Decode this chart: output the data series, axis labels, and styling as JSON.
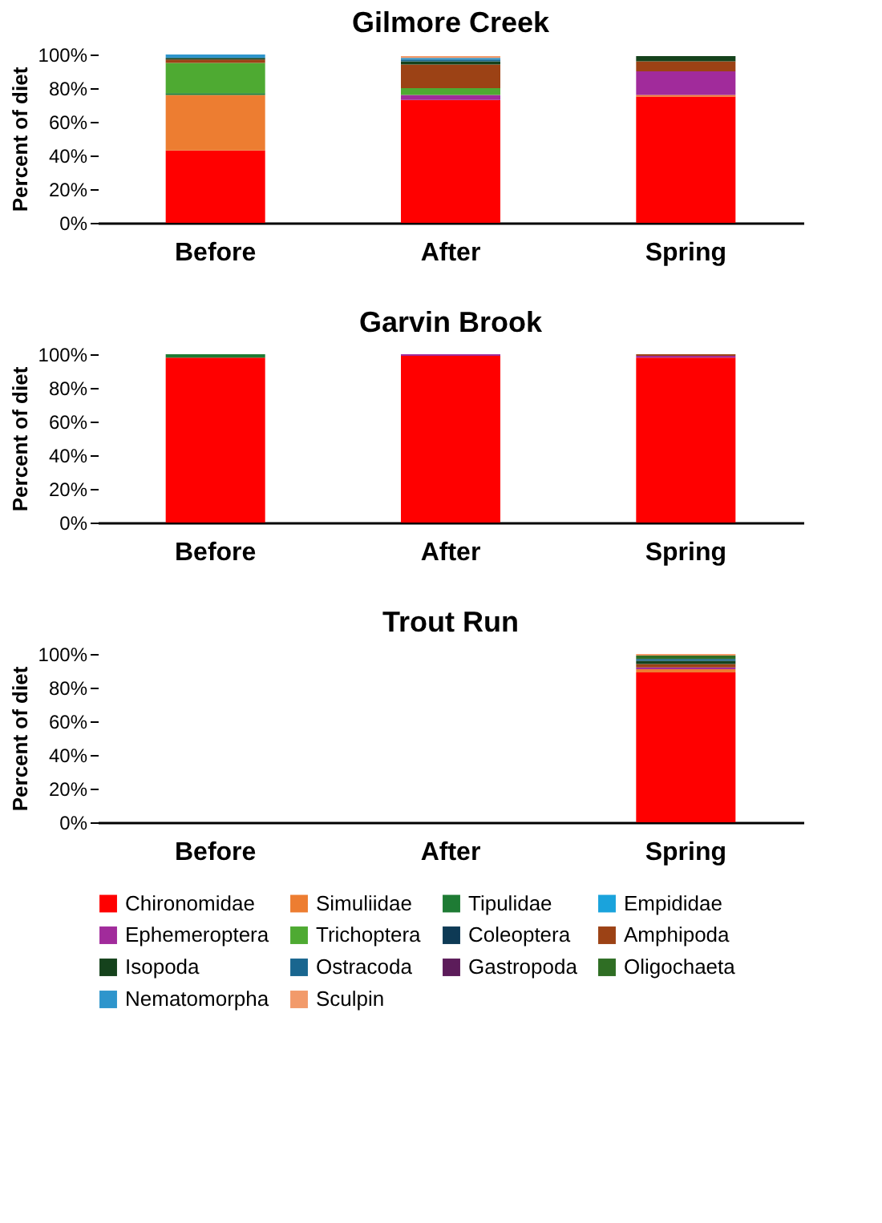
{
  "chart_data": [
    {
      "type": "bar",
      "title": "Gilmore Creek",
      "ylabel": "Percent of diet",
      "categories": [
        "Before",
        "After",
        "Spring"
      ],
      "stacked": true,
      "ylim": [
        0,
        100
      ],
      "yticks": [
        {
          "value": 0,
          "label": "0%"
        },
        {
          "value": 20,
          "label": "20%"
        },
        {
          "value": 40,
          "label": "40%"
        },
        {
          "value": 60,
          "label": "60%"
        },
        {
          "value": 80,
          "label": "80%"
        },
        {
          "value": 100,
          "label": "100%"
        }
      ],
      "grid": false,
      "series": [
        {
          "color": "#ff0000",
          "values": [
            43,
            73,
            75
          ]
        },
        {
          "color": "#ed7d31",
          "values": [
            33,
            null,
            1
          ]
        },
        {
          "color": "#1e7b34",
          "values": [
            1,
            null,
            null
          ]
        },
        {
          "color": "#a12b9b",
          "values": [
            null,
            3,
            14
          ]
        },
        {
          "color": "#4eaa32",
          "values": [
            18,
            4,
            null
          ]
        },
        {
          "color": "#9c4215",
          "values": [
            2,
            14,
            6
          ]
        },
        {
          "color": "#15421c",
          "values": [
            1,
            2,
            3
          ]
        },
        {
          "color": "#19668f",
          "values": [
            null,
            1,
            null
          ]
        },
        {
          "color": "#2e95cc",
          "values": [
            2,
            1,
            null
          ]
        },
        {
          "color": "#f29a6a",
          "values": [
            null,
            1,
            null
          ]
        }
      ]
    },
    {
      "type": "bar",
      "title": "Garvin Brook",
      "ylabel": "Percent of diet",
      "categories": [
        "Before",
        "After",
        "Spring"
      ],
      "stacked": true,
      "ylim": [
        0,
        100
      ],
      "yticks": [
        {
          "value": 0,
          "label": "0%"
        },
        {
          "value": 20,
          "label": "20%"
        },
        {
          "value": 40,
          "label": "40%"
        },
        {
          "value": 60,
          "label": "60%"
        },
        {
          "value": 80,
          "label": "80%"
        },
        {
          "value": 100,
          "label": "100%"
        }
      ],
      "grid": false,
      "series": [
        {
          "color": "#ff0000",
          "values": [
            98,
            99,
            98
          ]
        },
        {
          "color": "#1e7b34",
          "values": [
            2,
            null,
            null
          ]
        },
        {
          "color": "#a12b9b",
          "values": [
            null,
            1,
            1
          ]
        },
        {
          "color": "#9c4215",
          "values": [
            null,
            null,
            1
          ]
        }
      ]
    },
    {
      "type": "bar",
      "title": "Trout Run",
      "ylabel": "Percent of diet",
      "categories": [
        "Before",
        "After",
        "Spring"
      ],
      "stacked": true,
      "ylim": [
        0,
        100
      ],
      "yticks": [
        {
          "value": 0,
          "label": "0%"
        },
        {
          "value": 20,
          "label": "20%"
        },
        {
          "value": 40,
          "label": "40%"
        },
        {
          "value": 60,
          "label": "60%"
        },
        {
          "value": 80,
          "label": "80%"
        },
        {
          "value": 100,
          "label": "100%"
        }
      ],
      "grid": false,
      "legend": "bottom",
      "series": [
        {
          "name": "Chironomidae",
          "color": "#ff0000",
          "values": [
            null,
            null,
            89
          ]
        },
        {
          "name": "Simuliidae",
          "color": "#ed7d31",
          "values": [
            null,
            null,
            2
          ]
        },
        {
          "name": "Tipulidae",
          "color": "#1e7b34",
          "values": [
            null,
            null,
            null
          ]
        },
        {
          "name": "Empididae",
          "color": "#1aa3dc",
          "values": [
            null,
            null,
            null
          ]
        },
        {
          "name": "Ephemeroptera",
          "color": "#a12b9b",
          "values": [
            null,
            null,
            1
          ]
        },
        {
          "name": "Trichoptera",
          "color": "#4eaa32",
          "values": [
            null,
            null,
            null
          ]
        },
        {
          "name": "Coleoptera",
          "color": "#0e3a55",
          "values": [
            null,
            null,
            null
          ]
        },
        {
          "name": "Amphipoda",
          "color": "#9c4215",
          "values": [
            null,
            null,
            2
          ]
        },
        {
          "name": "Isopoda",
          "color": "#15421c",
          "values": [
            null,
            null,
            2
          ]
        },
        {
          "name": "Ostracoda",
          "color": "#19668f",
          "values": [
            null,
            null,
            1
          ]
        },
        {
          "name": "Gastropoda",
          "color": "#5c1c5a",
          "values": [
            null,
            null,
            null
          ]
        },
        {
          "name": "Oligochaeta",
          "color": "#2f6e24",
          "values": [
            null,
            null,
            2
          ]
        },
        {
          "name": "Nematomorpha",
          "color": "#2e95cc",
          "values": [
            null,
            null,
            null
          ]
        },
        {
          "name": "Sculpin",
          "color": "#f29a6a",
          "values": [
            null,
            null,
            1
          ]
        }
      ]
    }
  ]
}
